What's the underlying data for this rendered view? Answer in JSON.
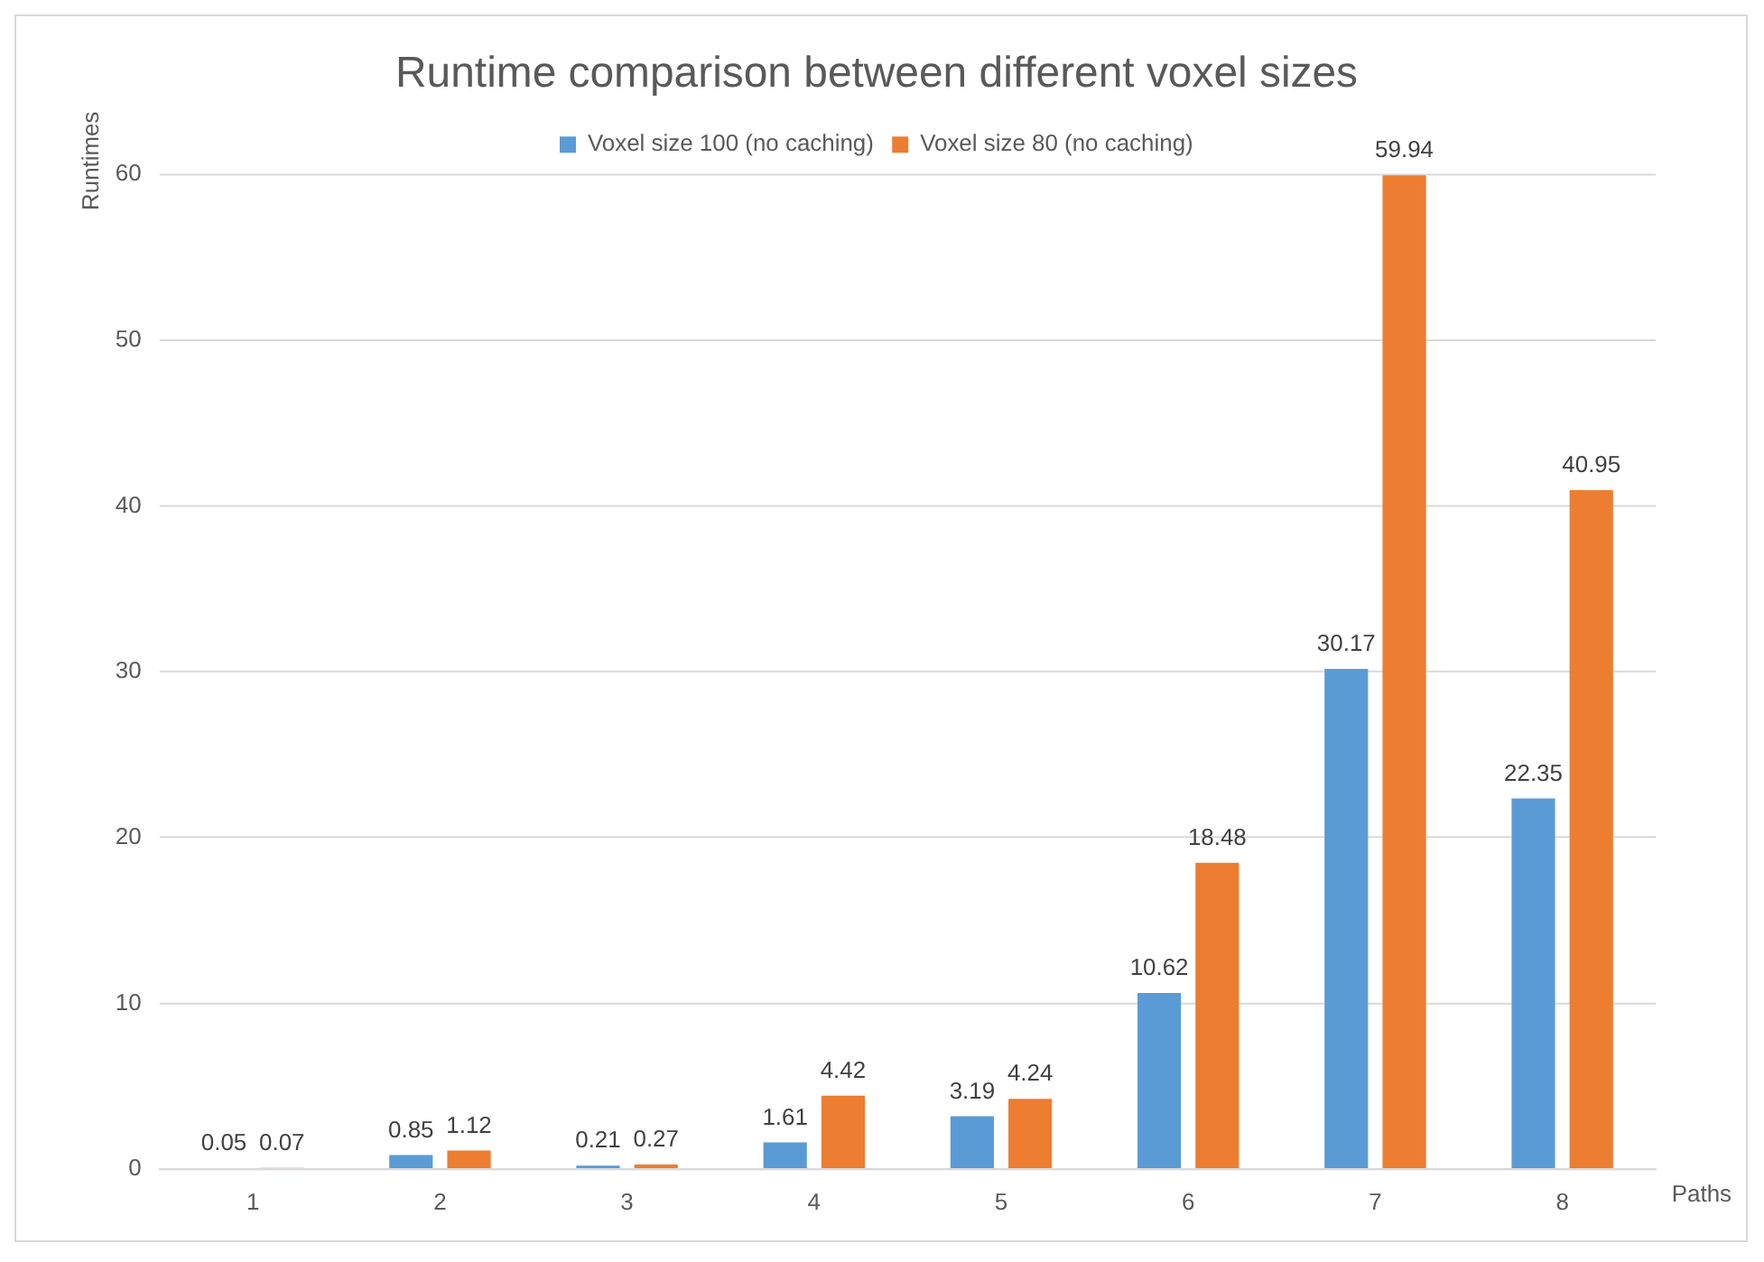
{
  "chart_data": {
    "type": "bar",
    "title": "Runtime comparison between different voxel sizes",
    "xlabel": "Paths",
    "ylabel": "Runtimes",
    "categories": [
      "1",
      "2",
      "3",
      "4",
      "5",
      "6",
      "7",
      "8"
    ],
    "series": [
      {
        "name": "Voxel size 100 (no caching)",
        "color": "#5b9bd5",
        "values": [
          0.05,
          0.85,
          0.21,
          1.61,
          3.19,
          10.62,
          30.17,
          22.35
        ]
      },
      {
        "name": "Voxel size 80 (no caching)",
        "color": "#ed7d31",
        "values": [
          0.07,
          1.12,
          0.27,
          4.42,
          4.24,
          18.48,
          59.94,
          40.95
        ]
      }
    ],
    "ylim": [
      0,
      60
    ],
    "yticks": [
      0,
      10,
      20,
      30,
      40,
      50,
      60
    ],
    "grid": "y",
    "legend": "top",
    "data_labels": true
  }
}
